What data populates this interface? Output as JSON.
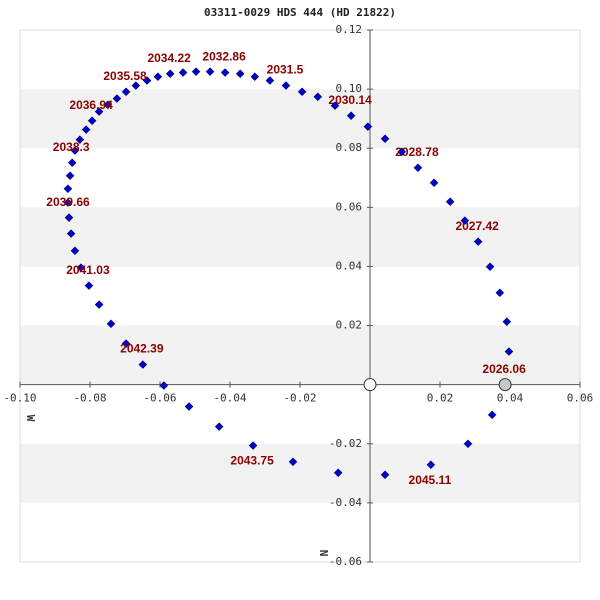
{
  "chart_data": {
    "type": "scatter",
    "title": "03311-0029 HDS 444 (HD 21822)",
    "x_direction_label": "W",
    "y_direction_label": "N",
    "xlim": [
      -0.1,
      0.06
    ],
    "ylim": [
      -0.06,
      0.12
    ],
    "xticks": [
      {
        "value": -0.1,
        "label": "-0.10"
      },
      -0.08,
      -0.06,
      -0.04,
      -0.02,
      0.02,
      0.04,
      0.06
    ],
    "yticks": [
      0.12,
      {
        "value": 0.1,
        "label": "0.10"
      },
      0.08,
      0.06,
      0.04,
      0.02,
      -0.02,
      -0.04,
      -0.06
    ],
    "band_color": "#f2f2f2",
    "label_color": "#8b0000",
    "series": [
      {
        "marker": "diamond",
        "color": "#0000cc",
        "x": [
          0.0397,
          0.0391,
          0.0371,
          0.0343,
          0.0309,
          0.0271,
          0.0229,
          0.0183,
          0.0137,
          0.0091,
          0.0043,
          -0.0006,
          -0.0054,
          -0.01,
          -0.0149,
          -0.0194,
          -0.024,
          -0.0286,
          -0.0329,
          -0.0371,
          -0.0414,
          -0.0457,
          -0.0497,
          -0.0534,
          -0.0571,
          -0.0606,
          -0.0637,
          -0.0669,
          -0.0697,
          -0.0723,
          -0.0749,
          -0.0774,
          -0.0794,
          -0.0811,
          -0.0829,
          -0.0843,
          -0.0851,
          -0.0857,
          -0.0863,
          -0.0863,
          -0.086,
          -0.0854,
          -0.0843,
          -0.0826,
          -0.0803,
          -0.0774,
          -0.074,
          -0.0697,
          -0.0649,
          -0.0589,
          -0.0517,
          -0.0431,
          -0.0334,
          -0.022,
          -0.0091,
          0.0043,
          0.0174,
          0.028,
          0.0349
        ],
        "values": [
          0.0112,
          0.0213,
          0.0311,
          0.0399,
          0.0484,
          0.0555,
          0.0619,
          0.0683,
          0.0734,
          0.0788,
          0.0832,
          0.0873,
          0.091,
          0.0944,
          0.0974,
          0.0991,
          0.1012,
          0.1029,
          0.1042,
          0.1052,
          0.1056,
          0.1059,
          0.1059,
          0.1056,
          0.1052,
          0.1042,
          0.1029,
          0.1012,
          0.0991,
          0.0968,
          0.0947,
          0.0924,
          0.0893,
          0.0863,
          0.0829,
          0.0792,
          0.0751,
          0.0707,
          0.0663,
          0.0616,
          0.0565,
          0.0511,
          0.0453,
          0.0396,
          0.0335,
          0.0271,
          0.0206,
          0.0139,
          0.0068,
          -0.0003,
          -0.0074,
          -0.0142,
          -0.0206,
          -0.0261,
          -0.0298,
          -0.0305,
          -0.0271,
          -0.02,
          -0.0102
        ],
        "point_labels": [
          null,
          null,
          null,
          null,
          "2027.42",
          null,
          null,
          null,
          "2028.78",
          null,
          null,
          null,
          "2030.14",
          null,
          null,
          null,
          "2031.5",
          null,
          null,
          null,
          "2032.86",
          null,
          null,
          null,
          "2034.22",
          null,
          null,
          null,
          "2035.58",
          null,
          null,
          null,
          "2036.94",
          null,
          null,
          null,
          "2038.3",
          null,
          null,
          null,
          "2039.66",
          null,
          null,
          null,
          "2041.03",
          null,
          null,
          null,
          "2042.39",
          null,
          null,
          null,
          "2043.75",
          null,
          null,
          null,
          "2045.11",
          null,
          null
        ]
      },
      {
        "marker": "circle",
        "color": "#c8c8c8",
        "x": [
          0.0386
        ],
        "values": [
          0
        ],
        "point_labels": [
          "2026.06"
        ]
      },
      {
        "marker": "circle",
        "color": "#ffffff",
        "x": [
          0
        ],
        "values": [
          0
        ]
      }
    ]
  }
}
